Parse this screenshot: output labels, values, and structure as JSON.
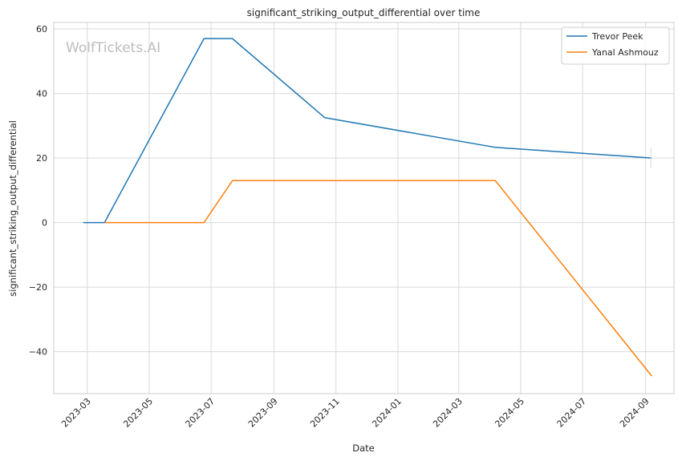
{
  "chart_data": {
    "type": "line",
    "title": "significant_striking_output_differential over time",
    "xlabel": "Date",
    "ylabel": "significant_striking_output_differential",
    "watermark": "WolfTickets.AI",
    "x_tick_labels": [
      "2023-03",
      "2023-05",
      "2023-07",
      "2023-09",
      "2023-11",
      "2024-01",
      "2024-03",
      "2024-05",
      "2024-07",
      "2024-09"
    ],
    "x_tick_dates": [
      "2023-03-01",
      "2023-05-01",
      "2023-07-01",
      "2023-09-01",
      "2023-11-01",
      "2024-01-01",
      "2024-03-01",
      "2024-05-01",
      "2024-07-01",
      "2024-09-01"
    ],
    "y_ticks": [
      -40,
      -20,
      0,
      20,
      40,
      60
    ],
    "y_tick_labels": [
      "−40",
      "−20",
      "0",
      "20",
      "40",
      "60"
    ],
    "xlim": [
      "2023-01-27",
      "2024-09-29"
    ],
    "ylim": [
      -53,
      62
    ],
    "grid": true,
    "legend_position": "top-right",
    "series": [
      {
        "name": "Trevor Peek",
        "color": "#1f77b4",
        "points": [
          {
            "x": "2023-02-25",
            "y": 0
          },
          {
            "x": "2023-03-18",
            "y": 0
          },
          {
            "x": "2023-06-24",
            "y": 57
          },
          {
            "x": "2023-07-22",
            "y": 57
          },
          {
            "x": "2023-10-21",
            "y": 32.5
          },
          {
            "x": "2024-04-06",
            "y": 23.3
          },
          {
            "x": "2024-09-07",
            "y": 20
          }
        ]
      },
      {
        "name": "Yanal Ashmouz",
        "color": "#ff7f0e",
        "points": [
          {
            "x": "2023-03-18",
            "y": 0
          },
          {
            "x": "2023-06-24",
            "y": 0
          },
          {
            "x": "2023-07-22",
            "y": 13
          },
          {
            "x": "2024-04-06",
            "y": 13
          },
          {
            "x": "2024-09-07",
            "y": -47.5
          }
        ]
      }
    ]
  }
}
